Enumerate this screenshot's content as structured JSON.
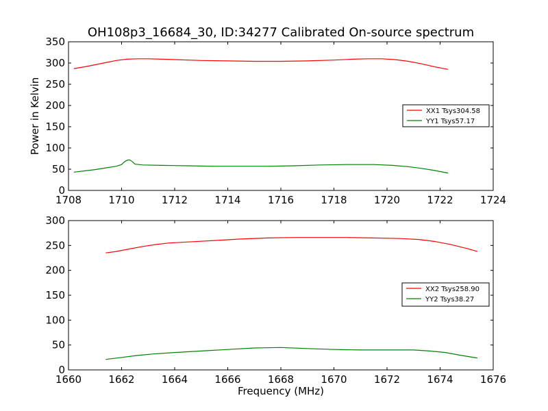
{
  "figure": {
    "title": "OH108p3_16684_30, ID:34277 Calibrated On-source spectrum"
  },
  "chart_data": [
    {
      "type": "line",
      "title": "OH108p3_16684_30, ID:34277 Calibrated On-source spectrum",
      "xlabel": "",
      "ylabel": "Power in Kelvin",
      "xlim": [
        1708,
        1724
      ],
      "ylim": [
        0,
        350
      ],
      "xticks": [
        1708,
        1710,
        1712,
        1714,
        1716,
        1718,
        1720,
        1722,
        1724
      ],
      "yticks": [
        0,
        50,
        100,
        150,
        200,
        250,
        300,
        350
      ],
      "grid": false,
      "legend_position": "center-right",
      "series": [
        {
          "name": "XX1 Tsys304.58",
          "color": "#ff0000",
          "points": [
            [
              1708.2,
              287
            ],
            [
              1708.6,
              291
            ],
            [
              1709.0,
              296
            ],
            [
              1709.4,
              301
            ],
            [
              1709.8,
              306
            ],
            [
              1710.2,
              309
            ],
            [
              1710.6,
              310
            ],
            [
              1711.0,
              310
            ],
            [
              1711.5,
              309
            ],
            [
              1712.0,
              308
            ],
            [
              1713.0,
              306
            ],
            [
              1714.0,
              305
            ],
            [
              1715.0,
              304
            ],
            [
              1716.0,
              304
            ],
            [
              1717.0,
              305
            ],
            [
              1718.0,
              307
            ],
            [
              1718.7,
              309
            ],
            [
              1719.3,
              310
            ],
            [
              1719.8,
              310
            ],
            [
              1720.3,
              308
            ],
            [
              1720.8,
              304
            ],
            [
              1721.3,
              298
            ],
            [
              1721.8,
              291
            ],
            [
              1722.3,
              285
            ]
          ]
        },
        {
          "name": "YY1 Tsys57.17",
          "color": "#008000",
          "points": [
            [
              1708.2,
              43
            ],
            [
              1708.6,
              46
            ],
            [
              1709.0,
              49
            ],
            [
              1709.4,
              53
            ],
            [
              1709.8,
              57
            ],
            [
              1710.0,
              61
            ],
            [
              1710.1,
              67
            ],
            [
              1710.2,
              71
            ],
            [
              1710.3,
              72
            ],
            [
              1710.4,
              68
            ],
            [
              1710.5,
              62
            ],
            [
              1710.8,
              60
            ],
            [
              1711.5,
              59
            ],
            [
              1712.5,
              58
            ],
            [
              1713.5,
              57
            ],
            [
              1714.5,
              57
            ],
            [
              1715.5,
              57
            ],
            [
              1716.5,
              58
            ],
            [
              1717.5,
              60
            ],
            [
              1718.5,
              61
            ],
            [
              1719.5,
              61
            ],
            [
              1720.2,
              59
            ],
            [
              1720.8,
              56
            ],
            [
              1721.3,
              52
            ],
            [
              1721.8,
              47
            ],
            [
              1722.3,
              41
            ]
          ]
        }
      ]
    },
    {
      "type": "line",
      "title": "",
      "xlabel": "Frequency (MHz)",
      "ylabel": "",
      "xlim": [
        1660,
        1676
      ],
      "ylim": [
        0,
        300
      ],
      "xticks": [
        1660,
        1662,
        1664,
        1666,
        1668,
        1670,
        1672,
        1674,
        1676
      ],
      "yticks": [
        0,
        50,
        100,
        150,
        200,
        250,
        300
      ],
      "grid": false,
      "legend_position": "center-right",
      "series": [
        {
          "name": "XX2 Tsys258.90",
          "color": "#ff0000",
          "points": [
            [
              1661.4,
              235
            ],
            [
              1661.8,
              238
            ],
            [
              1662.3,
              243
            ],
            [
              1662.8,
              248
            ],
            [
              1663.3,
              252
            ],
            [
              1663.8,
              255
            ],
            [
              1664.5,
              257
            ],
            [
              1665.5,
              260
            ],
            [
              1666.5,
              263
            ],
            [
              1667.5,
              265
            ],
            [
              1668.5,
              266
            ],
            [
              1669.5,
              266
            ],
            [
              1670.5,
              266
            ],
            [
              1671.5,
              265
            ],
            [
              1672.5,
              264
            ],
            [
              1673.2,
              262
            ],
            [
              1673.8,
              258
            ],
            [
              1674.4,
              252
            ],
            [
              1675.0,
              244
            ],
            [
              1675.4,
              238
            ]
          ]
        },
        {
          "name": "YY2 Tsys38.27",
          "color": "#008000",
          "points": [
            [
              1661.4,
              21
            ],
            [
              1662.0,
              25
            ],
            [
              1662.6,
              29
            ],
            [
              1663.2,
              32
            ],
            [
              1664.0,
              35
            ],
            [
              1665.0,
              38
            ],
            [
              1666.0,
              41
            ],
            [
              1667.0,
              44
            ],
            [
              1668.0,
              45
            ],
            [
              1669.0,
              43
            ],
            [
              1670.0,
              41
            ],
            [
              1671.0,
              40
            ],
            [
              1672.0,
              40
            ],
            [
              1673.0,
              40
            ],
            [
              1673.6,
              38
            ],
            [
              1674.2,
              35
            ],
            [
              1674.8,
              29
            ],
            [
              1675.4,
              24
            ]
          ]
        }
      ]
    }
  ]
}
